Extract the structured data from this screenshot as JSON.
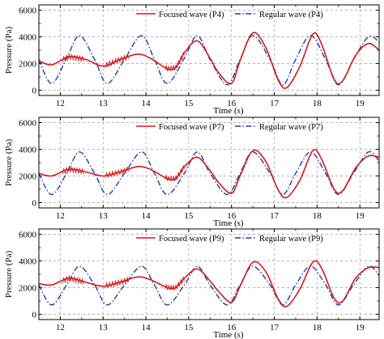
{
  "chart_data": [
    {
      "type": "line",
      "xlabel": "Time (s)",
      "ylabel": "Pressure (Pa)",
      "xlim": [
        11.5,
        19.45
      ],
      "ylim": [
        -400,
        6400
      ],
      "xticks": [
        "12",
        "13",
        "14",
        "15",
        "16",
        "17",
        "18",
        "19"
      ],
      "yticks": [
        "0",
        "2000",
        "4000",
        "6000"
      ],
      "grid": "dashed",
      "legend_position": "top-right",
      "colors": {
        "focused": "#d7191c",
        "regular": "#1f3fa8"
      },
      "series": [
        {
          "name": "Focused wave (P4)",
          "style": "solid",
          "x": [
            11.5,
            11.8,
            12.2,
            12.6,
            13.0,
            13.4,
            13.8,
            14.1,
            14.5,
            14.7,
            14.9,
            15.2,
            15.5,
            15.7,
            16.0,
            16.2,
            16.5,
            16.8,
            17.1,
            17.3,
            17.6,
            17.9,
            18.1,
            18.4,
            18.6,
            18.9,
            19.2,
            19.45
          ],
          "y": [
            2200,
            1900,
            2500,
            2300,
            1800,
            2300,
            2700,
            2400,
            1600,
            1700,
            2800,
            3700,
            2400,
            1300,
            500,
            2200,
            4300,
            3200,
            700,
            200,
            1800,
            4200,
            3500,
            800,
            700,
            2600,
            3500,
            3000
          ]
        },
        {
          "name": "Regular wave (P4)",
          "style": "dash-dot",
          "x": [
            11.5,
            11.8,
            12.15,
            12.45,
            12.8,
            13.1,
            13.5,
            13.9,
            14.2,
            14.5,
            14.9,
            15.2,
            15.5,
            15.9,
            16.2,
            16.5,
            16.9,
            17.2,
            17.5,
            17.85,
            18.2,
            18.5,
            18.85,
            19.2,
            19.45
          ],
          "y": [
            2300,
            500,
            2400,
            4100,
            2300,
            500,
            2300,
            4100,
            2300,
            500,
            2400,
            4100,
            2300,
            400,
            2300,
            4100,
            2300,
            400,
            2300,
            4100,
            2300,
            400,
            2300,
            4000,
            3600
          ]
        }
      ]
    },
    {
      "type": "line",
      "xlabel": "Time (s)",
      "ylabel": "Pressure (Pa)",
      "xlim": [
        11.5,
        19.45
      ],
      "ylim": [
        -400,
        6400
      ],
      "xticks": [
        "12",
        "13",
        "14",
        "15",
        "16",
        "17",
        "18",
        "19"
      ],
      "yticks": [
        "0",
        "2000",
        "4000",
        "6000"
      ],
      "grid": "dashed",
      "legend_position": "top-right",
      "colors": {
        "focused": "#d7191c",
        "regular": "#1f3fa8"
      },
      "series": [
        {
          "name": "Focused wave (P7)",
          "style": "solid",
          "x": [
            11.5,
            11.8,
            12.2,
            12.6,
            13.0,
            13.4,
            13.8,
            14.1,
            14.5,
            14.7,
            14.9,
            15.2,
            15.5,
            15.7,
            16.0,
            16.2,
            16.5,
            16.8,
            17.1,
            17.3,
            17.6,
            17.9,
            18.1,
            18.4,
            18.6,
            18.9,
            19.2,
            19.45
          ],
          "y": [
            2200,
            2000,
            2500,
            2300,
            2000,
            2300,
            2700,
            2500,
            1800,
            1800,
            2700,
            3400,
            2400,
            1500,
            700,
            2000,
            3900,
            3100,
            900,
            400,
            1700,
            3900,
            3300,
            1000,
            900,
            2600,
            3500,
            3400
          ]
        },
        {
          "name": "Regular wave (P7)",
          "style": "dash-dot",
          "x": [
            11.5,
            11.8,
            12.15,
            12.45,
            12.8,
            13.1,
            13.5,
            13.9,
            14.2,
            14.5,
            14.9,
            15.2,
            15.5,
            15.9,
            16.2,
            16.5,
            16.9,
            17.2,
            17.5,
            17.85,
            18.2,
            18.5,
            18.85,
            19.2,
            19.45
          ],
          "y": [
            2200,
            600,
            2200,
            3800,
            2200,
            600,
            2200,
            3800,
            2200,
            600,
            2200,
            3800,
            2200,
            600,
            2200,
            3800,
            2200,
            600,
            2200,
            3800,
            2200,
            600,
            2200,
            3800,
            3100
          ]
        }
      ]
    },
    {
      "type": "line",
      "xlabel": "Time (s)",
      "ylabel": "Pressure (Pa)",
      "xlim": [
        11.5,
        19.45
      ],
      "ylim": [
        -400,
        6400
      ],
      "xticks": [
        "12",
        "13",
        "14",
        "15",
        "16",
        "17",
        "18",
        "19"
      ],
      "yticks": [
        "0",
        "2000",
        "4000",
        "6000"
      ],
      "grid": "dashed",
      "legend_position": "top-right",
      "colors": {
        "focused": "#d7191c",
        "regular": "#1f3fa8"
      },
      "series": [
        {
          "name": "Focused wave (P9)",
          "style": "solid",
          "x": [
            11.5,
            11.8,
            12.2,
            12.6,
            13.0,
            13.4,
            13.8,
            14.1,
            14.5,
            14.7,
            14.9,
            15.2,
            15.5,
            15.7,
            16.0,
            16.2,
            16.5,
            16.8,
            17.1,
            17.3,
            17.6,
            17.9,
            18.1,
            18.4,
            18.6,
            18.9,
            19.2,
            19.45
          ],
          "y": [
            2300,
            2200,
            2700,
            2400,
            2100,
            2400,
            2800,
            2600,
            2000,
            2000,
            2700,
            3400,
            2500,
            1700,
            900,
            2100,
            3900,
            3200,
            1100,
            600,
            1900,
            3900,
            3500,
            1200,
            1000,
            2700,
            3500,
            3500
          ]
        },
        {
          "name": "Regular wave (P9)",
          "style": "dash-dot",
          "x": [
            11.5,
            11.8,
            12.15,
            12.45,
            12.8,
            13.1,
            13.5,
            13.9,
            14.2,
            14.5,
            14.9,
            15.2,
            15.5,
            15.9,
            16.2,
            16.5,
            16.9,
            17.2,
            17.5,
            17.85,
            18.2,
            18.5,
            18.85,
            19.2,
            19.45
          ],
          "y": [
            2200,
            700,
            2200,
            3600,
            2200,
            700,
            2200,
            3600,
            2200,
            700,
            2200,
            3600,
            2200,
            700,
            2200,
            3600,
            2200,
            700,
            2200,
            3600,
            2200,
            700,
            2200,
            3600,
            2900
          ]
        }
      ]
    }
  ]
}
